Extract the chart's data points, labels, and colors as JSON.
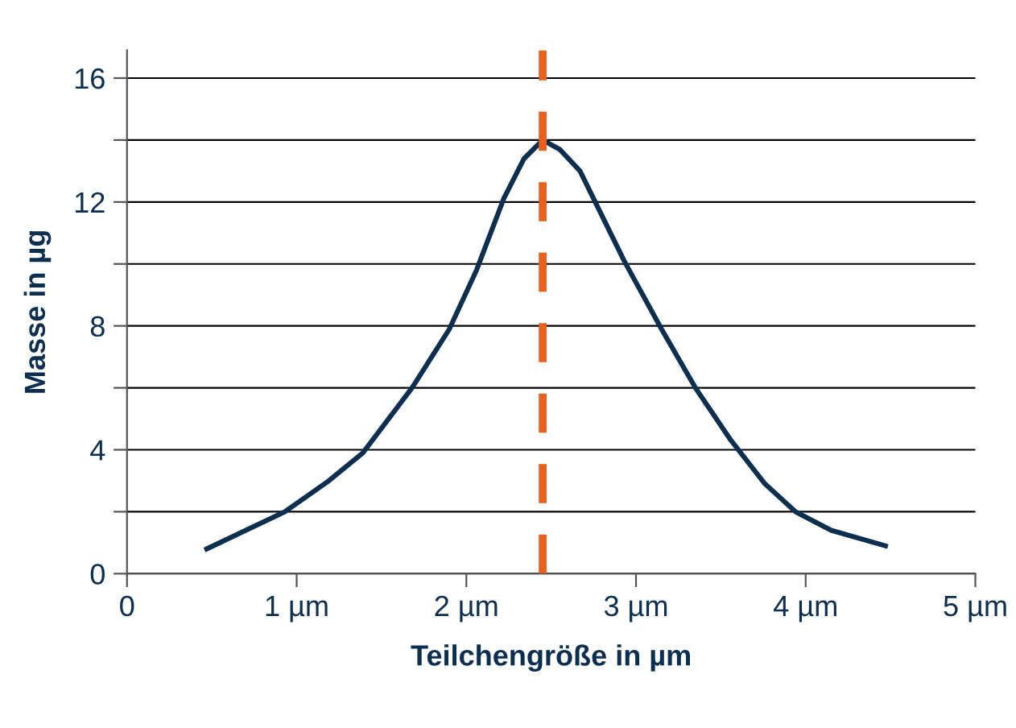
{
  "chart_data": {
    "type": "line",
    "xlabel": "Teilchengröße in µm",
    "ylabel": "Masse in µg",
    "x": [
      0.47,
      0.93,
      1.19,
      1.39,
      1.68,
      1.9,
      2.06,
      2.22,
      2.34,
      2.45,
      2.55,
      2.67,
      2.93,
      3.15,
      3.35,
      3.56,
      3.76,
      3.94,
      4.15,
      4.47
    ],
    "series": [
      {
        "color": "#0d2f4f",
        "values": [
          0.8,
          2.0,
          3.0,
          3.9,
          6.0,
          7.9,
          9.8,
          12.1,
          13.4,
          14.0,
          13.7,
          13.0,
          10.1,
          7.9,
          6.0,
          4.3,
          2.9,
          2.0,
          1.4,
          0.9
        ]
      }
    ],
    "xlim": [
      0,
      5
    ],
    "xticks": [
      0,
      {
        "value": 1,
        "label": "1 µm"
      },
      {
        "value": 2,
        "label": "2 µm"
      },
      {
        "value": 3,
        "label": "3 µm"
      },
      {
        "value": 4,
        "label": "4 µm"
      },
      {
        "value": 5,
        "label": "5 µm"
      }
    ],
    "ylim": [
      0,
      16.9
    ],
    "yticks": [
      0,
      {
        "value": 2,
        "label": null
      },
      4,
      {
        "value": 6,
        "label": null
      },
      8,
      {
        "value": 10,
        "label": null
      },
      12,
      {
        "value": 14,
        "label": null
      },
      16
    ],
    "ref_lines": [
      {
        "axis": "x",
        "value": 2.45,
        "color": "#e8601c",
        "line_style": "dashed"
      }
    ],
    "grid": "y",
    "legend": false,
    "marker": "none",
    "line_style": "solid"
  }
}
